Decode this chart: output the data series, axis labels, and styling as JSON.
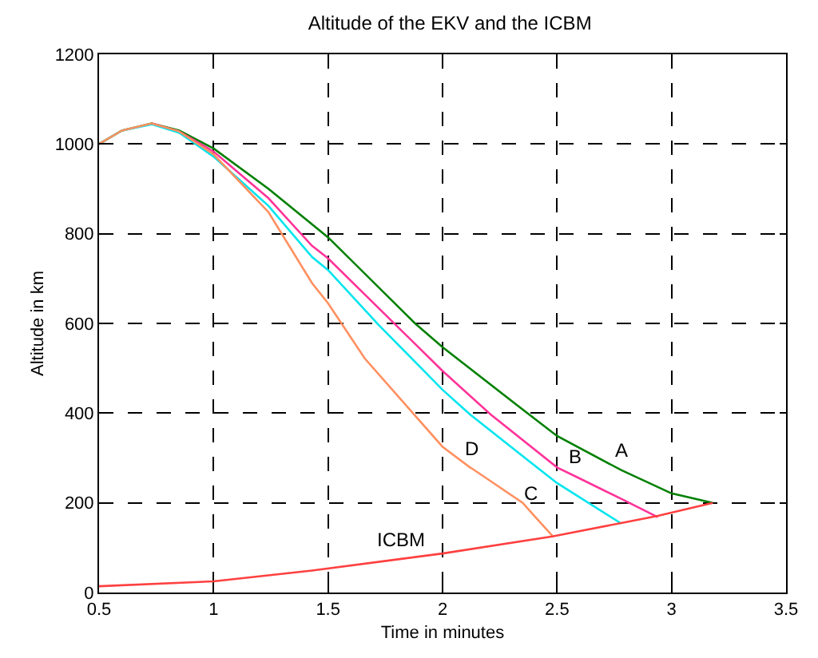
{
  "chart_data": {
    "type": "line",
    "title": "Altitude of the EKV and the ICBM",
    "xlabel": "Time in minutes",
    "ylabel": "Altitude in km",
    "xlim": [
      0.5,
      3.5
    ],
    "xticks": [
      0.5,
      1,
      1.5,
      2,
      2.5,
      3,
      3.5
    ],
    "ylim": [
      0,
      1200
    ],
    "yticks": [
      0,
      200,
      400,
      600,
      800,
      1000,
      1200
    ],
    "grid": true,
    "line_style": "solid",
    "marker": "none",
    "series": [
      {
        "color": "#008000",
        "x": [
          0.5,
          0.6,
          0.73,
          0.85,
          1,
          1.24,
          1.5,
          1.88,
          2,
          2.37,
          2.5,
          2.78,
          3,
          3.18
        ],
        "values": [
          1000,
          1030,
          1046,
          1030,
          990,
          900,
          792,
          600,
          547,
          400,
          349,
          273,
          221,
          200
        ]
      },
      {
        "color": "#ff3399",
        "x": [
          0.73,
          0.85,
          1,
          1.24,
          1.43,
          1.5,
          2,
          2.21,
          2.5,
          2.58,
          2.78,
          2.94
        ],
        "values": [
          1046,
          1028,
          983,
          879,
          773,
          745,
          494,
          397,
          279,
          259,
          209,
          168
        ]
      },
      {
        "color": "#00e5ee",
        "x": [
          0.5,
          0.6,
          0.73,
          0.85,
          1,
          1.24,
          1.43,
          1.5,
          1.72,
          2,
          2.12,
          2.39,
          2.5,
          2.78
        ],
        "values": [
          1000,
          1030,
          1044,
          1025,
          972,
          862,
          748,
          719,
          597,
          452,
          397,
          288,
          244,
          154
        ]
      },
      {
        "color": "#ff9060",
        "x": [
          0.5,
          0.6,
          0.73,
          0.85,
          1,
          1.24,
          1.43,
          1.5,
          1.66,
          2,
          2.12,
          2.13,
          2.35,
          2.39,
          2.48
        ],
        "values": [
          1000,
          1030,
          1046,
          1028,
          977,
          848,
          690,
          645,
          522,
          325,
          279,
          276,
          200,
          177,
          126
        ]
      },
      {
        "color": "#ff4040",
        "x": [
          0.5,
          1,
          1.43,
          1.82,
          2,
          2.48,
          2.78,
          2.94,
          3.18
        ],
        "values": [
          14,
          25,
          49,
          75,
          87,
          125,
          155,
          171,
          200
        ]
      }
    ],
    "annotations": [
      {
        "text": "A",
        "x": 2.78,
        "y": 273
      },
      {
        "text": "B",
        "x": 2.58,
        "y": 259
      },
      {
        "text": "C",
        "x": 2.39,
        "y": 177
      },
      {
        "text": "D",
        "x": 2.13,
        "y": 276
      },
      {
        "text": "ICBM",
        "x": 1.82,
        "y": 75
      }
    ]
  }
}
